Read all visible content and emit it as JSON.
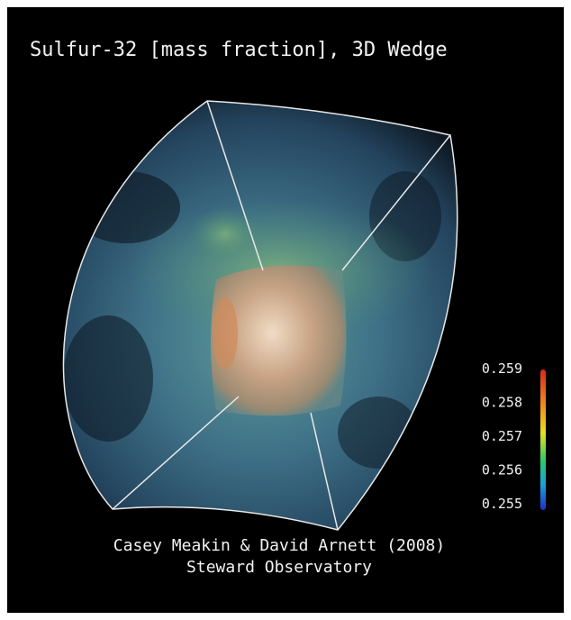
{
  "title": "Sulfur-32 [mass fraction], 3D Wedge",
  "colorbar": {
    "range": [
      0.255,
      0.259
    ],
    "ticks": [
      0.259,
      0.258,
      0.257,
      0.256,
      0.255
    ]
  },
  "credits": {
    "authors": "Casey Meakin & David Arnett (2008)",
    "institution": "Steward Observatory"
  }
}
